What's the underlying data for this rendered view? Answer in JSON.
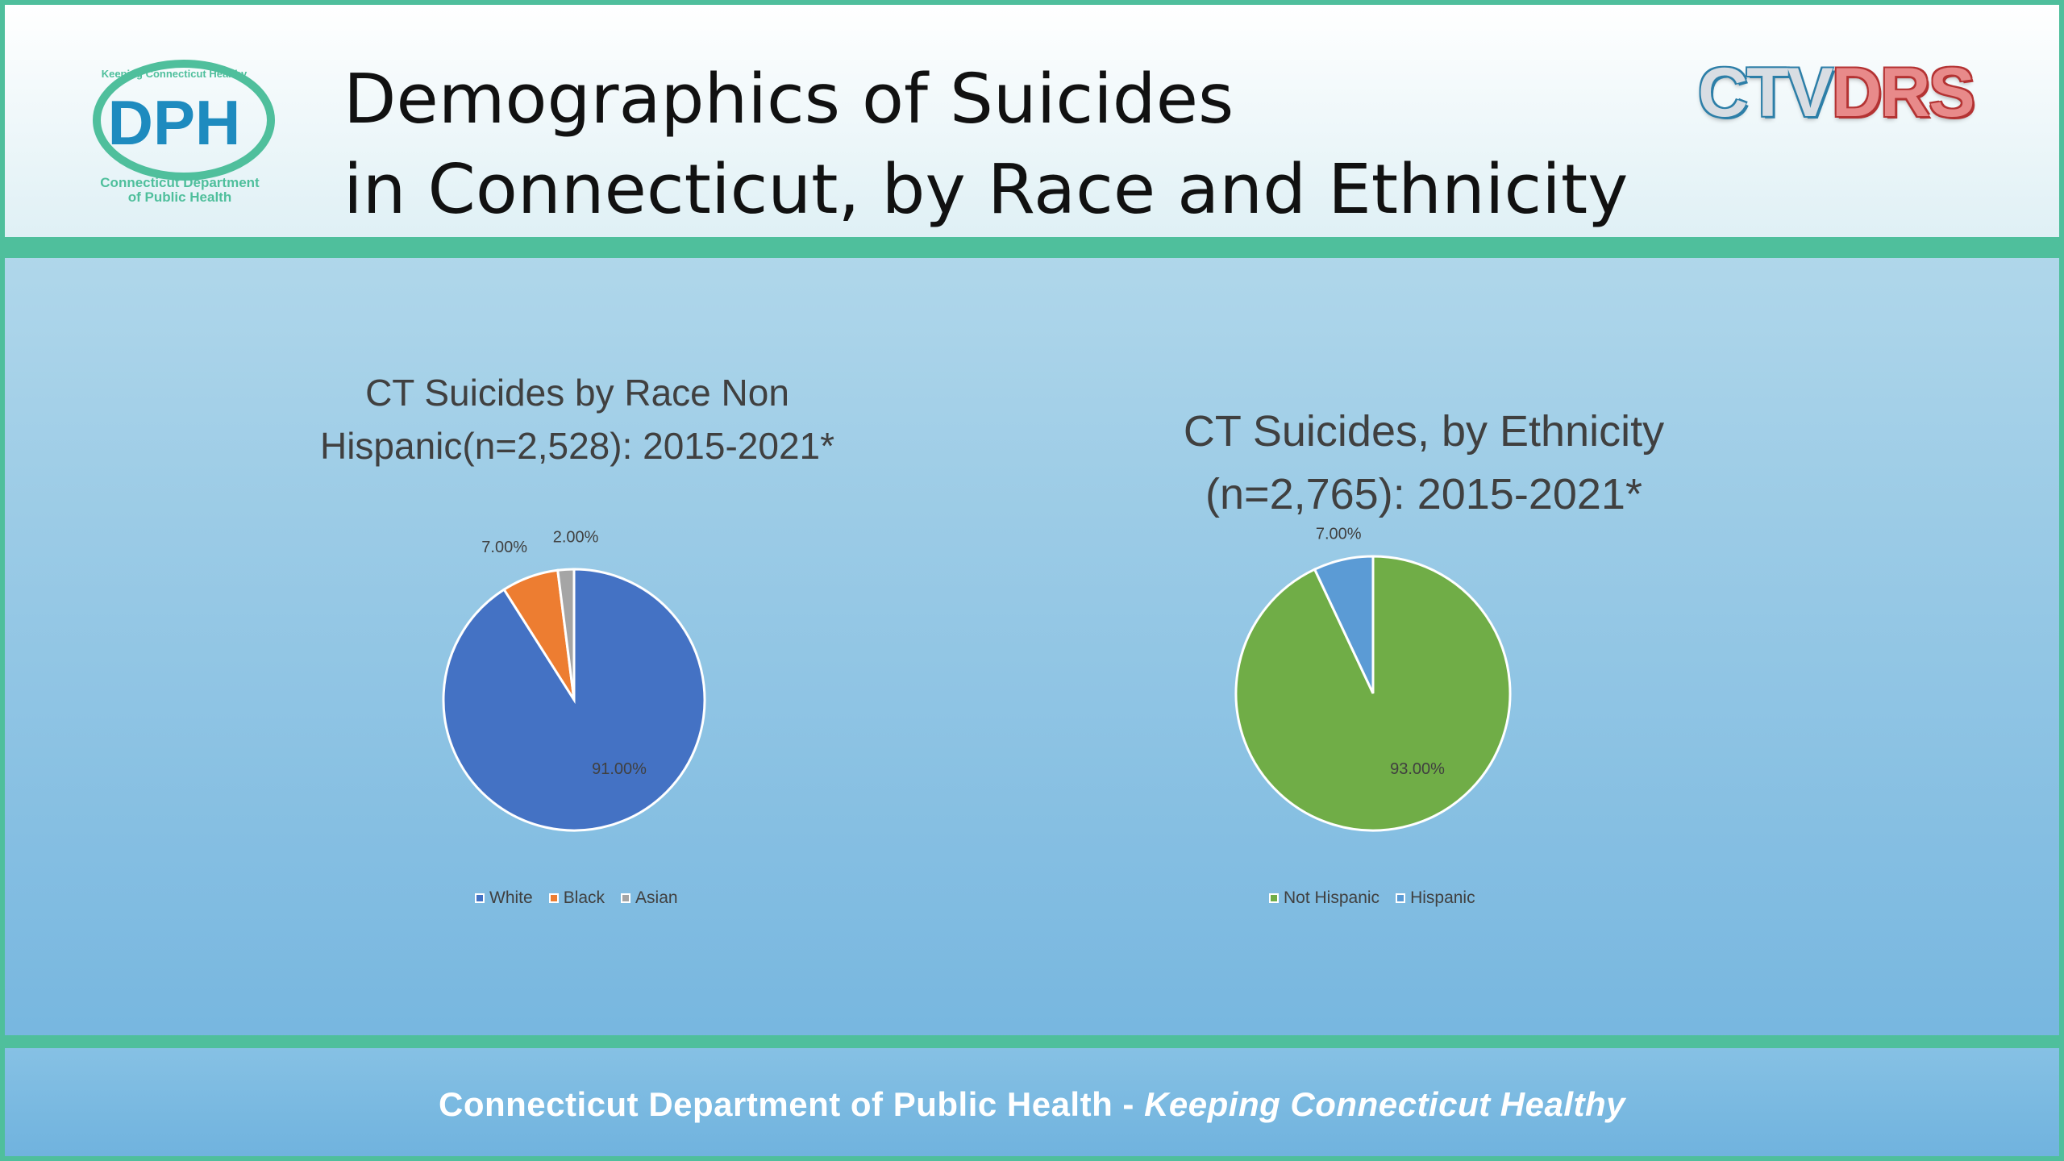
{
  "header": {
    "title_line1": "Demographics of Suicides",
    "title_line2": "in Connecticut, by Race and Ethnicity",
    "logo_left": {
      "name": "DPH",
      "arc_text": "Keeping Connecticut Healthy",
      "subtitle_line1": "Connecticut Department",
      "subtitle_line2": "of Public Health"
    },
    "logo_right": {
      "part1": "CTV",
      "part2": "DRS"
    }
  },
  "footer": {
    "org": "Connecticut Department of Public Health",
    "separator": " - ",
    "tagline": "Keeping Connecticut Healthy"
  },
  "colors": {
    "white": "#4472c4",
    "black": "#ed7d31",
    "asian": "#a5a5a5",
    "not_hispanic": "#70ad47",
    "hispanic": "#5b9bd5",
    "band": "#4fbf9c"
  },
  "chart_data": [
    {
      "type": "pie",
      "title_line1": "CT Suicides by Race Non",
      "title_line2": "Hispanic(n=2,528): 2015-2021*",
      "categories": [
        "White",
        "Black",
        "Asian"
      ],
      "values": [
        91,
        7,
        2
      ],
      "labels": [
        "91.00%",
        "7.00%",
        "2.00%"
      ],
      "legend": "bottom"
    },
    {
      "type": "pie",
      "title_line1": "CT Suicides, by Ethnicity",
      "title_line2": "(n=2,765): 2015-2021*",
      "categories": [
        "Not Hispanic",
        "Hispanic"
      ],
      "values": [
        93,
        7
      ],
      "labels": [
        "93.00%",
        "7.00%"
      ],
      "legend": "bottom"
    }
  ]
}
